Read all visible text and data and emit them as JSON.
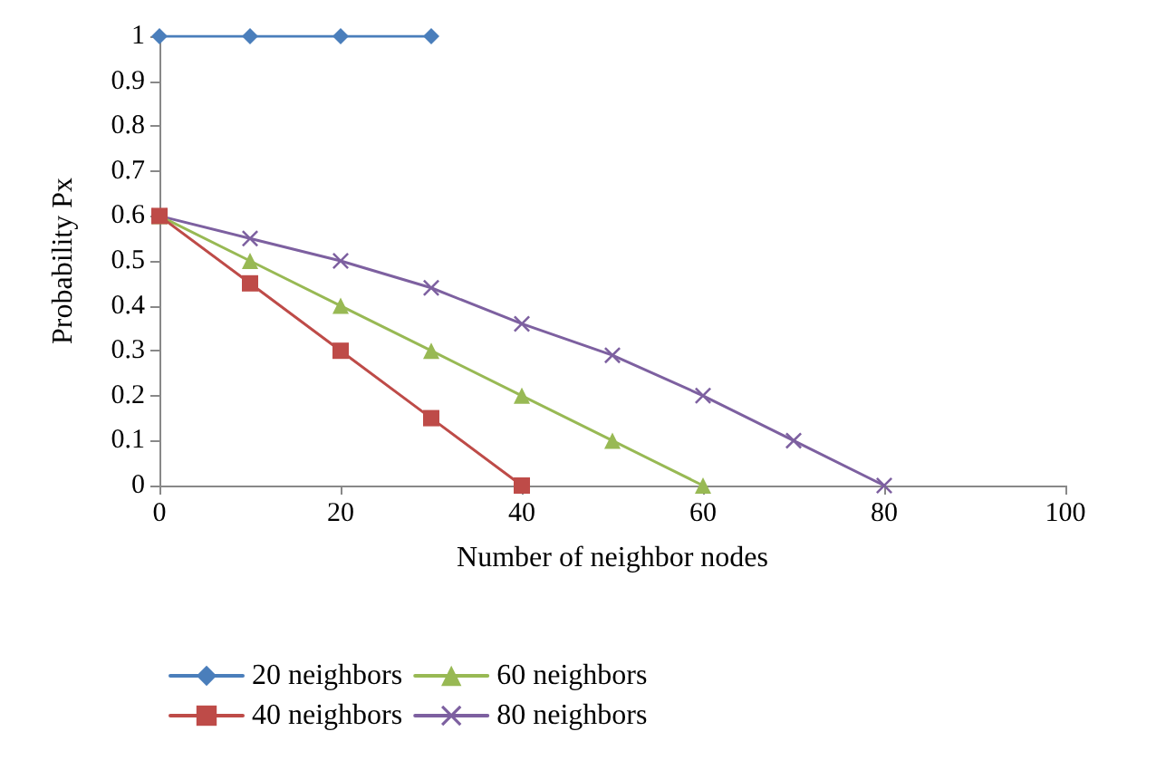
{
  "chart_data": {
    "type": "line",
    "xlabel": "Number of neighbor nodes",
    "ylabel": "Probability Px",
    "xlim": [
      0,
      100
    ],
    "xticks": [
      0,
      20,
      40,
      60,
      80,
      100
    ],
    "ylim": [
      0,
      1
    ],
    "yticks": [
      0,
      0.1,
      0.2,
      0.3,
      0.4,
      0.5,
      0.6,
      0.7,
      0.8,
      0.9,
      1
    ],
    "grid": false,
    "legend": "bottom",
    "line_style": "solid",
    "series": [
      {
        "name": "20 neighbors",
        "color": "#4a7ebb",
        "marker": "diamond",
        "x": [
          0,
          10,
          20,
          30
        ],
        "values": [
          1,
          1,
          1,
          1
        ]
      },
      {
        "name": "40 neighbors",
        "color": "#be4b48",
        "marker": "square",
        "x": [
          0,
          10,
          20,
          30,
          40
        ],
        "values": [
          0.6,
          0.45,
          0.3,
          0.15,
          0
        ]
      },
      {
        "name": "60 neighbors",
        "color": "#98b954",
        "marker": "triangle",
        "x": [
          0,
          10,
          20,
          30,
          40,
          50,
          60
        ],
        "values": [
          0.6,
          0.5,
          0.4,
          0.3,
          0.2,
          0.1,
          0
        ]
      },
      {
        "name": "80 neighbors",
        "color": "#7d60a0",
        "marker": "cross",
        "x": [
          0,
          10,
          20,
          30,
          40,
          50,
          60,
          70,
          80
        ],
        "values": [
          0.6,
          0.55,
          0.5,
          0.44,
          0.36,
          0.29,
          0.2,
          0.1,
          0
        ]
      }
    ]
  }
}
